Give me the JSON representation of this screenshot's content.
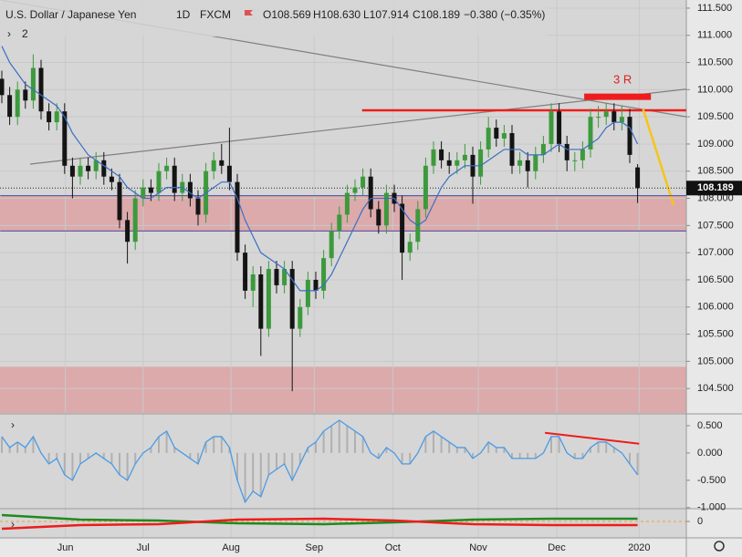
{
  "chart_data": [
    {
      "type": "candlestick",
      "title": "U.S. Dollar / Japanese Yen",
      "interval": "1D",
      "source": "FXCM",
      "ohlc_text": [
        "O108.569",
        "H108.630",
        "L107.914",
        "C108.189",
        "−0.380 (−0.35%)"
      ],
      "study_count": "2",
      "annotation": "3 R",
      "up_color": "#3c9a3c",
      "down_color": "#141414",
      "grid": true,
      "ylim": [
        104.05,
        111.65
      ],
      "yticks": [
        {
          "value": 104.5,
          "label": "104.500"
        },
        {
          "value": 105,
          "label": "105.000"
        },
        {
          "value": 105.5,
          "label": "105.500"
        },
        {
          "value": 106,
          "label": "106.000"
        },
        {
          "value": 106.5,
          "label": "106.500"
        },
        {
          "value": 107,
          "label": "107.000"
        },
        {
          "value": 107.5,
          "label": "107.500"
        },
        {
          "value": 108,
          "label": "108.000"
        },
        {
          "value": 108.5,
          "label": "108.500"
        },
        {
          "value": 109,
          "label": "109.000"
        },
        {
          "value": 109.5,
          "label": "109.500"
        },
        {
          "value": 110,
          "label": "110.000"
        },
        {
          "value": 110.5,
          "label": "110.500"
        },
        {
          "value": 111,
          "label": "111.000"
        },
        {
          "value": 111.5,
          "label": "111.500"
        }
      ],
      "xticks": [
        {
          "value": 8.1,
          "label": "Jun"
        },
        {
          "value": 18,
          "label": "Jul"
        },
        {
          "value": 29.2,
          "label": "Aug"
        },
        {
          "value": 39.8,
          "label": "Sep"
        },
        {
          "value": 49.8,
          "label": "Oct"
        },
        {
          "value": 60.7,
          "label": "Nov"
        },
        {
          "value": 70.7,
          "label": "Dec"
        },
        {
          "value": 81.2,
          "label": "2020"
        }
      ],
      "candles": [
        [
          110.2,
          110.35,
          109.75,
          109.9
        ],
        [
          109.9,
          110.05,
          109.35,
          109.5
        ],
        [
          109.5,
          110.15,
          109.35,
          110.0
        ],
        [
          110.0,
          110.15,
          109.65,
          109.8
        ],
        [
          109.8,
          110.65,
          109.65,
          110.4
        ],
        [
          110.4,
          110.55,
          109.45,
          109.6
        ],
        [
          109.6,
          109.75,
          109.25,
          109.4
        ],
        [
          109.4,
          109.75,
          109.25,
          109.6
        ],
        [
          109.6,
          109.75,
          108.45,
          108.6
        ],
        [
          108.6,
          108.75,
          108.0,
          108.4
        ],
        [
          108.4,
          108.75,
          108.25,
          108.6
        ],
        [
          108.6,
          108.75,
          108.35,
          108.5
        ],
        [
          108.5,
          108.85,
          108.35,
          108.7
        ],
        [
          108.7,
          108.85,
          108.25,
          108.4
        ],
        [
          108.4,
          108.55,
          108.15,
          108.3
        ],
        [
          108.3,
          108.45,
          107.45,
          107.6
        ],
        [
          107.6,
          107.75,
          106.8,
          107.2
        ],
        [
          107.2,
          108.15,
          107.05,
          108.0
        ],
        [
          108.0,
          108.35,
          107.85,
          108.2
        ],
        [
          108.2,
          108.35,
          107.95,
          108.1
        ],
        [
          108.1,
          108.65,
          107.95,
          108.5
        ],
        [
          108.5,
          108.75,
          108.35,
          108.6
        ],
        [
          108.6,
          108.75,
          107.95,
          108.1
        ],
        [
          108.1,
          108.45,
          107.95,
          108.3
        ],
        [
          108.3,
          108.45,
          107.85,
          108.0
        ],
        [
          108.0,
          108.15,
          107.5,
          107.7
        ],
        [
          107.7,
          108.65,
          107.55,
          108.5
        ],
        [
          108.5,
          108.85,
          108.35,
          108.7
        ],
        [
          108.7,
          109.0,
          108.45,
          108.6
        ],
        [
          108.6,
          109.3,
          108.15,
          108.3
        ],
        [
          108.3,
          108.45,
          106.85,
          107.0
        ],
        [
          107.0,
          107.15,
          106.15,
          106.3
        ],
        [
          106.3,
          106.75,
          106.0,
          106.6
        ],
        [
          106.6,
          106.75,
          105.1,
          105.6
        ],
        [
          105.6,
          106.85,
          105.45,
          106.7
        ],
        [
          106.7,
          106.85,
          106.25,
          106.4
        ],
        [
          106.4,
          106.85,
          106.25,
          106.7
        ],
        [
          106.7,
          106.85,
          104.45,
          105.6
        ],
        [
          105.6,
          106.15,
          105.45,
          106.0
        ],
        [
          106.0,
          106.65,
          105.85,
          106.5
        ],
        [
          106.5,
          106.65,
          106.15,
          106.3
        ],
        [
          106.3,
          107.05,
          106.15,
          106.9
        ],
        [
          106.9,
          107.55,
          106.75,
          107.4
        ],
        [
          107.4,
          107.85,
          107.25,
          107.7
        ],
        [
          107.7,
          108.25,
          107.55,
          108.1
        ],
        [
          108.1,
          108.35,
          107.95,
          108.2
        ],
        [
          108.2,
          108.55,
          108.05,
          108.4
        ],
        [
          108.4,
          108.55,
          107.65,
          107.8
        ],
        [
          107.8,
          107.95,
          107.35,
          107.5
        ],
        [
          107.5,
          108.25,
          107.35,
          108.1
        ],
        [
          108.1,
          108.25,
          107.75,
          107.9
        ],
        [
          107.9,
          108.05,
          106.5,
          107.0
        ],
        [
          107.0,
          107.35,
          106.85,
          107.2
        ],
        [
          107.2,
          107.95,
          107.05,
          107.8
        ],
        [
          107.8,
          108.75,
          107.65,
          108.6
        ],
        [
          108.6,
          109.05,
          108.45,
          108.9
        ],
        [
          108.9,
          109.05,
          108.55,
          108.7
        ],
        [
          108.7,
          108.85,
          108.45,
          108.6
        ],
        [
          108.6,
          108.85,
          108.45,
          108.7
        ],
        [
          108.7,
          109.0,
          108.55,
          108.8
        ],
        [
          108.8,
          108.95,
          107.9,
          108.4
        ],
        [
          108.4,
          109.05,
          108.25,
          108.9
        ],
        [
          108.9,
          109.5,
          108.75,
          109.3
        ],
        [
          109.3,
          109.45,
          108.95,
          109.1
        ],
        [
          109.1,
          109.35,
          108.95,
          109.2
        ],
        [
          109.2,
          109.35,
          108.45,
          108.6
        ],
        [
          108.6,
          108.85,
          108.45,
          108.7
        ],
        [
          108.7,
          108.85,
          108.2,
          108.5
        ],
        [
          108.5,
          108.95,
          108.35,
          108.8
        ],
        [
          108.8,
          109.15,
          108.65,
          109.0
        ],
        [
          109.0,
          109.75,
          108.85,
          109.6
        ],
        [
          109.6,
          109.75,
          108.85,
          109.0
        ],
        [
          109.0,
          109.15,
          108.5,
          108.7
        ],
        [
          108.7,
          108.85,
          108.5,
          108.7
        ],
        [
          108.7,
          109.05,
          108.55,
          108.9
        ],
        [
          108.9,
          109.65,
          108.75,
          109.5
        ],
        [
          109.5,
          109.7,
          109.3,
          109.5
        ],
        [
          109.5,
          109.75,
          109.35,
          109.6
        ],
        [
          109.6,
          109.75,
          109.25,
          109.4
        ],
        [
          109.4,
          109.7,
          109.25,
          109.5
        ],
        [
          109.5,
          109.65,
          108.65,
          108.8
        ],
        [
          108.569,
          108.63,
          107.914,
          108.189
        ]
      ],
      "ma_color": "#3a6fc4",
      "ma": [
        110.8,
        110.5,
        110.3,
        110.1,
        110.0,
        109.9,
        109.8,
        109.7,
        109.5,
        109.2,
        109.0,
        108.8,
        108.7,
        108.6,
        108.5,
        108.4,
        108.2,
        108.1,
        108.0,
        108.0,
        108.1,
        108.2,
        108.2,
        108.2,
        108.1,
        108.0,
        108.1,
        108.2,
        108.3,
        108.3,
        108.0,
        107.6,
        107.3,
        107.0,
        106.9,
        106.8,
        106.7,
        106.5,
        106.3,
        106.3,
        106.3,
        106.4,
        106.6,
        106.9,
        107.2,
        107.5,
        107.8,
        108.0,
        108.0,
        108.0,
        108.0,
        107.8,
        107.6,
        107.5,
        107.6,
        107.9,
        108.2,
        108.4,
        108.5,
        108.6,
        108.6,
        108.6,
        108.7,
        108.8,
        108.9,
        108.9,
        108.9,
        108.8,
        108.8,
        108.8,
        108.9,
        109.0,
        108.9,
        108.9,
        108.9,
        109.0,
        109.1,
        109.3,
        109.4,
        109.4,
        109.3,
        109.0
      ],
      "zone_color": "#dcaaab",
      "zones": [
        [
          107.4,
          108.05
        ],
        [
          104.05,
          104.9
        ]
      ],
      "drawings": [
        {
          "color": "#808080",
          "width": 1.2,
          "x": [
            -0.2,
            87.2
          ],
          "y": [
            111.65,
            109.5
          ]
        },
        {
          "color": "#808080",
          "width": 1.2,
          "x": [
            3.6,
            87.2
          ],
          "y": [
            108.63,
            110.01
          ]
        },
        {
          "color": "#ee1c1c",
          "width": 2.5,
          "x": [
            45.9,
            87.2
          ],
          "y": [
            109.62,
            109.62
          ]
        },
        {
          "color": "#ee1c1c",
          "width": 7,
          "x": [
            74.2,
            82.7
          ],
          "y": [
            109.87,
            109.87
          ]
        },
        {
          "color": "#f5c518",
          "width": 2.5,
          "x": [
            81.7,
            85.6
          ],
          "y": [
            109.64,
            107.87
          ]
        },
        {
          "color": "#4a4aa0",
          "width": 1,
          "x": [
            -0.2,
            87.2
          ],
          "y": [
            108.05,
            108.05
          ]
        },
        {
          "color": "#4a4aa0",
          "width": 1,
          "x": [
            -0.2,
            87.2
          ],
          "y": [
            107.4,
            107.4
          ]
        }
      ]
    },
    {
      "type": "line",
      "color": "#4a9be8",
      "ylim": [
        -1.02,
        0.7
      ],
      "yticks": [
        {
          "value": 0.5,
          "label": "0.500"
        },
        {
          "value": 0,
          "label": "0.000"
        },
        {
          "value": -0.5,
          "label": "-0.500"
        },
        {
          "value": -1,
          "label": "-1.000"
        }
      ],
      "values": [
        0.3,
        0.1,
        0.2,
        0.1,
        0.3,
        0.0,
        -0.2,
        -0.1,
        -0.4,
        -0.5,
        -0.2,
        -0.1,
        0.0,
        -0.1,
        -0.2,
        -0.4,
        -0.5,
        -0.2,
        0.0,
        0.1,
        0.3,
        0.4,
        0.1,
        0.0,
        -0.1,
        -0.2,
        0.2,
        0.3,
        0.3,
        0.1,
        -0.5,
        -0.9,
        -0.7,
        -0.8,
        -0.4,
        -0.3,
        -0.2,
        -0.5,
        -0.2,
        0.1,
        0.2,
        0.4,
        0.5,
        0.6,
        0.5,
        0.4,
        0.3,
        0.0,
        -0.1,
        0.1,
        0.0,
        -0.2,
        -0.2,
        0.0,
        0.3,
        0.4,
        0.3,
        0.2,
        0.1,
        0.1,
        -0.1,
        0.0,
        0.2,
        0.1,
        0.1,
        -0.1,
        -0.1,
        -0.1,
        -0.1,
        0.0,
        0.3,
        0.3,
        0.0,
        -0.1,
        -0.1,
        0.1,
        0.2,
        0.2,
        0.1,
        0.0,
        -0.2,
        -0.4
      ],
      "drawings": [
        {
          "color": "#ee1c1c",
          "width": 2,
          "x": [
            69.2,
            81.2
          ],
          "y": [
            0.37,
            0.17
          ]
        }
      ]
    },
    {
      "type": "multiline",
      "ylim": [
        -1.8,
        1.4
      ],
      "yticks": [
        0
      ],
      "zero_color": "#f0a030",
      "x": [
        0,
        10,
        20,
        30,
        41,
        50,
        60,
        70,
        81
      ],
      "series": [
        {
          "color": "#1f8a1f",
          "values": [
            0.7,
            0.2,
            0.1,
            -0.2,
            -0.3,
            -0.1,
            0.2,
            0.3,
            0.3
          ]
        },
        {
          "color": "#ee1c1c",
          "values": [
            -0.8,
            -0.4,
            -0.3,
            0.2,
            0.3,
            0.1,
            -0.3,
            -0.4,
            -0.4
          ]
        }
      ]
    }
  ]
}
